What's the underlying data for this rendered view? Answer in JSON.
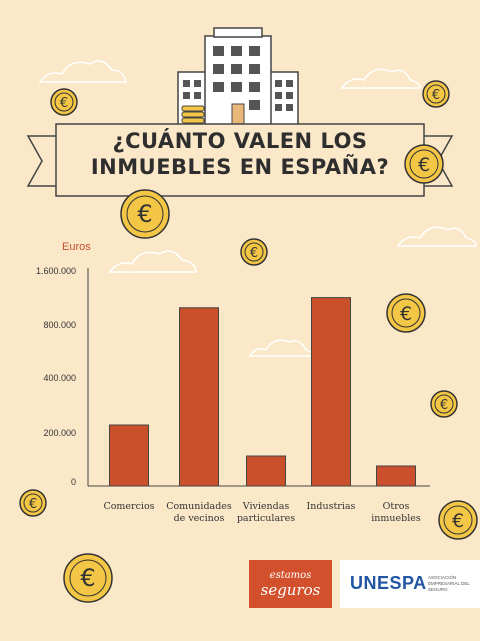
{
  "title_line1": "¿CUÁNTO VALEN LOS",
  "title_line2": "INMUEBLES EN ESPAÑA?",
  "currency_icon": "euro-coin-icon",
  "colors": {
    "background": "#fbe8c9",
    "bar": "#c9502b",
    "ylabel": "#c2502b"
  },
  "chart_data": {
    "type": "bar",
    "ylabel": "Euros",
    "y_ticks": [
      "0",
      "200.000",
      "400.000",
      "800.000",
      "1.600.000"
    ],
    "categories": [
      "Comercios",
      "Comunidades\nde vecinos",
      "Viviendas\nparticulares",
      "Industrias",
      "Otros\ninmuebles"
    ],
    "values": [
      240000,
      1100000,
      120000,
      1250000,
      80000
    ],
    "ylim": [
      0,
      1600000
    ],
    "grid": false
  },
  "logos": {
    "estamos_line1": "estamos",
    "estamos_line2": "seguros",
    "unespa_word": "UNESPA",
    "unespa_sub": "ASOCIACIÓN EMPRESARIAL DEL SEGURO"
  }
}
